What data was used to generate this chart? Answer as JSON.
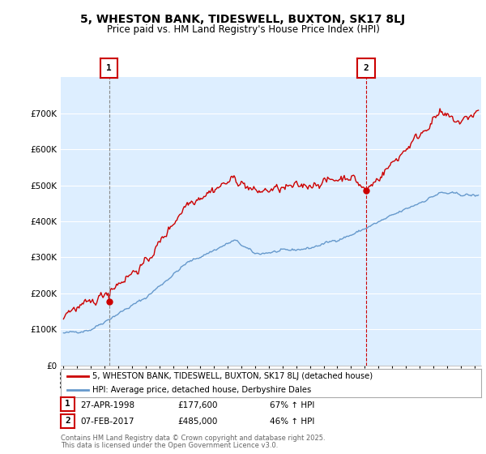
{
  "title": "5, WHESTON BANK, TIDESWELL, BUXTON, SK17 8LJ",
  "subtitle": "Price paid vs. HM Land Registry's House Price Index (HPI)",
  "legend_label_red": "5, WHESTON BANK, TIDESWELL, BUXTON, SK17 8LJ (detached house)",
  "legend_label_blue": "HPI: Average price, detached house, Derbyshire Dales",
  "marker1_date": "27-APR-1998",
  "marker1_price": 177600,
  "marker1_hpi": "67% ↑ HPI",
  "marker1_year": 1998.32,
  "marker2_date": "07-FEB-2017",
  "marker2_price": 485000,
  "marker2_hpi": "46% ↑ HPI",
  "marker2_year": 2017.1,
  "footnote_line1": "Contains HM Land Registry data © Crown copyright and database right 2025.",
  "footnote_line2": "This data is licensed under the Open Government Licence v3.0.",
  "ylim": [
    0,
    800000
  ],
  "xlim_start": 1994.8,
  "xlim_end": 2025.5,
  "red_color": "#cc0000",
  "blue_color": "#6699cc",
  "bg_color": "#ddeeff",
  "grid_color": "#ffffff"
}
